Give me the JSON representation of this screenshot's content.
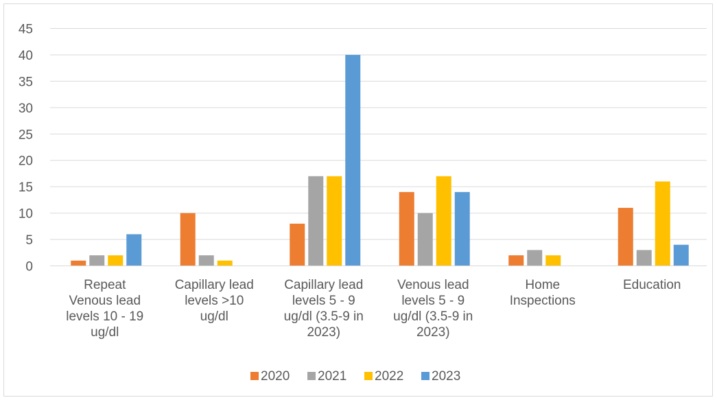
{
  "chart_data": {
    "type": "bar",
    "title": "",
    "xlabel": "",
    "ylabel": "",
    "ylim": [
      0,
      45
    ],
    "yticks": [
      0,
      5,
      10,
      15,
      20,
      25,
      30,
      35,
      40,
      45
    ],
    "grid": true,
    "legend_position": "bottom",
    "categories": [
      [
        "Repeat",
        "Venous lead",
        "levels 10 - 19",
        "ug/dl"
      ],
      [
        "Capillary lead",
        "levels >10",
        "ug/dl"
      ],
      [
        "Capillary lead",
        "levels  5 - 9",
        "ug/dl (3.5-9 in",
        "2023)"
      ],
      [
        "Venous lead",
        "levels  5 - 9",
        "ug/dl (3.5-9 in",
        "2023)"
      ],
      [
        "Home",
        "Inspections"
      ],
      [
        "Education"
      ]
    ],
    "series": [
      {
        "name": "2020",
        "color": "#ed7d31",
        "values": [
          1,
          10,
          8,
          14,
          2,
          11
        ]
      },
      {
        "name": "2021",
        "color": "#a5a5a5",
        "values": [
          2,
          2,
          17,
          10,
          3,
          3
        ]
      },
      {
        "name": "2022",
        "color": "#ffc000",
        "values": [
          2,
          1,
          17,
          17,
          2,
          16
        ]
      },
      {
        "name": "2023",
        "color": "#5b9bd5",
        "values": [
          6,
          0,
          40,
          14,
          0,
          4
        ]
      }
    ]
  }
}
